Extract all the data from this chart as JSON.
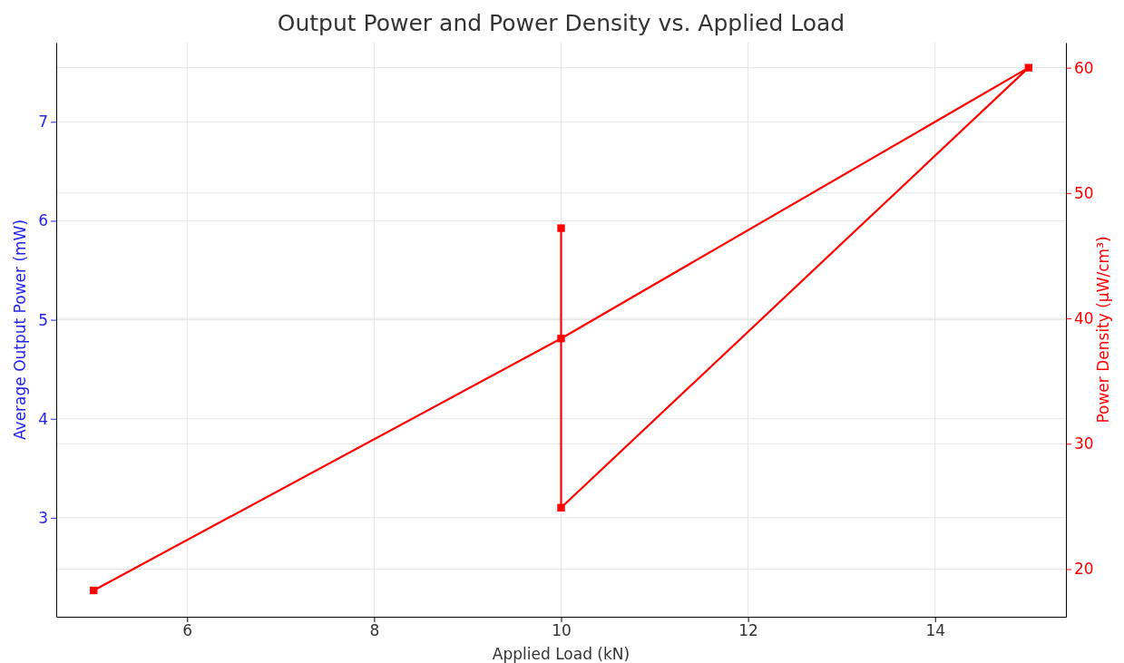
{
  "chart_data": {
    "type": "line",
    "title": "Output Power and Power Density vs. Applied Load",
    "xlabel": "Applied Load (kN)",
    "ylabel": "Average Output Power (mW)",
    "y2label": "Power Density (µW/cm³)",
    "x": [
      5,
      10,
      15,
      10,
      10
    ],
    "series": [
      {
        "color": "#ff0000",
        "axis": "y2",
        "values": [
          18.3,
          38.4,
          60,
          24.9,
          47.2
        ]
      }
    ],
    "xlim": [
      4.6,
      15.4
    ],
    "xticks": [
      6,
      8,
      10,
      12,
      14
    ],
    "ylim": [
      2.0,
      7.8
    ],
    "yticks": [
      3,
      4,
      5,
      6,
      7
    ],
    "y2lim": [
      16.2,
      62
    ],
    "y2ticks": [
      20,
      30,
      40,
      50,
      60
    ],
    "grid": true,
    "marker": "square",
    "line_style": "solid"
  }
}
